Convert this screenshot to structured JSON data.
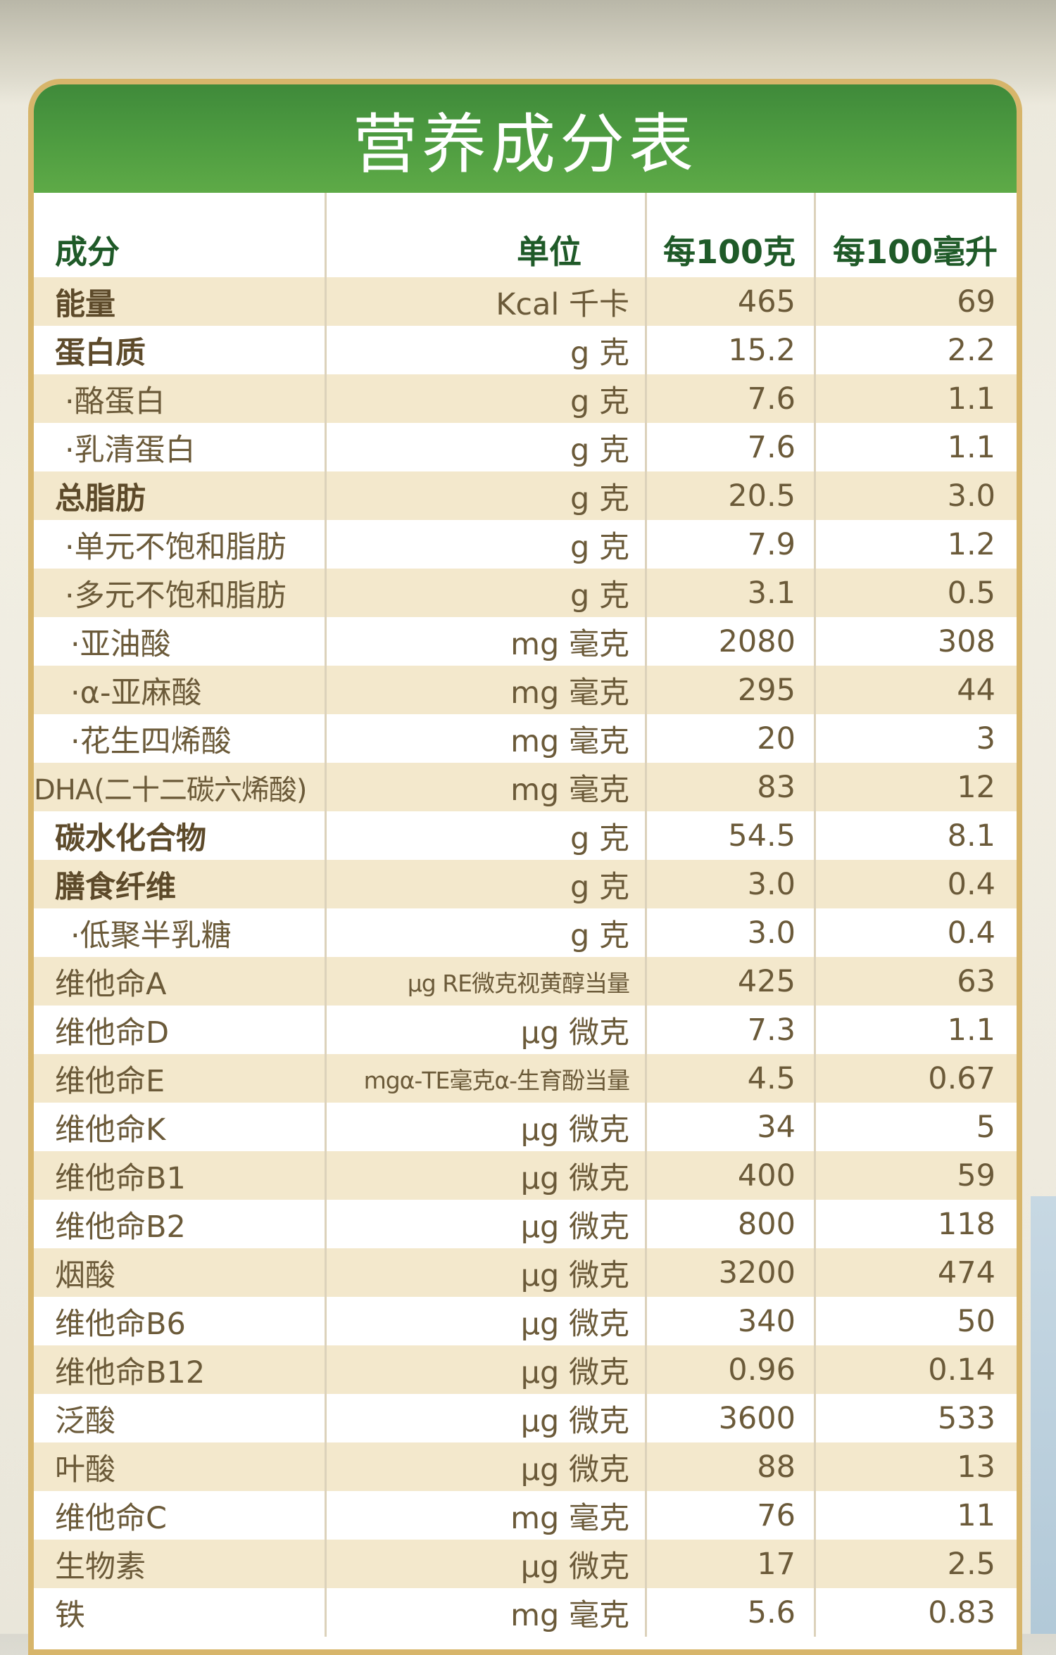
{
  "title": "营养成分表",
  "headers": [
    "成分",
    "单位",
    "每100克",
    "每100毫升"
  ],
  "rows": [
    {
      "name": "能量",
      "unit": "Kcal 千卡",
      "per100g": "465",
      "per100ml": "69"
    },
    {
      "name": "蛋白质",
      "unit": "g 克",
      "per100g": "15.2",
      "per100ml": "2.2"
    },
    {
      "name": "·酪蛋白",
      "unit": "g 克",
      "per100g": "7.6",
      "per100ml": "1.1"
    },
    {
      "name": "·乳清蛋白",
      "unit": "g 克",
      "per100g": "7.6",
      "per100ml": "1.1"
    },
    {
      "name": "总脂肪",
      "unit": "g 克",
      "per100g": "20.5",
      "per100ml": "3.0"
    },
    {
      "name": "·单元不饱和脂肪",
      "unit": "g 克",
      "per100g": "7.9",
      "per100ml": "1.2"
    },
    {
      "name": "·多元不饱和脂肪",
      "unit": "g 克",
      "per100g": "3.1",
      "per100ml": "0.5"
    },
    {
      "name": "·亚油酸",
      "unit": "mg 毫克",
      "per100g": "2080",
      "per100ml": "308"
    },
    {
      "name": "·α-亚麻酸",
      "unit": "mg 毫克",
      "per100g": "295",
      "per100ml": "44"
    },
    {
      "name": "·花生四烯酸",
      "unit": "mg 毫克",
      "per100g": "20",
      "per100ml": "3"
    },
    {
      "name": "DHA(二十二碳六烯酸)",
      "unit": "mg 毫克",
      "per100g": "83",
      "per100ml": "12"
    },
    {
      "name": "碳水化合物",
      "unit": "g 克",
      "per100g": "54.5",
      "per100ml": "8.1"
    },
    {
      "name": "膳食纤维",
      "unit": "g 克",
      "per100g": "3.0",
      "per100ml": "0.4"
    },
    {
      "name": "·低聚半乳糖",
      "unit": "g 克",
      "per100g": "3.0",
      "per100ml": "0.4"
    },
    {
      "name": "维他命A",
      "unit": "µg RE微克视黄醇当量",
      "per100g": "425",
      "per100ml": "63"
    },
    {
      "name": "维他命D",
      "unit": "µg 微克",
      "per100g": "7.3",
      "per100ml": "1.1"
    },
    {
      "name": "维他命E",
      "unit": "mgα-TE毫克α-生育酚当量",
      "per100g": "4.5",
      "per100ml": "0.67"
    },
    {
      "name": "维他命K",
      "unit": "µg 微克",
      "per100g": "34",
      "per100ml": "5"
    },
    {
      "name": "维他命B1",
      "unit": "µg 微克",
      "per100g": "400",
      "per100ml": "59"
    },
    {
      "name": "维他命B2",
      "unit": "µg 微克",
      "per100g": "800",
      "per100ml": "118"
    },
    {
      "name": "烟酸",
      "unit": "µg 微克",
      "per100g": "3200",
      "per100ml": "474"
    },
    {
      "name": "维他命B6",
      "unit": "µg 微克",
      "per100g": "340",
      "per100ml": "50"
    },
    {
      "name": "维他命B12",
      "unit": "µg 微克",
      "per100g": "0.96",
      "per100ml": "0.14"
    },
    {
      "name": "泛酸",
      "unit": "µg 微克",
      "per100g": "3600",
      "per100ml": "533"
    },
    {
      "name": "叶酸",
      "unit": "µg 微克",
      "per100g": "88",
      "per100ml": "13"
    },
    {
      "name": "维他命C",
      "unit": "mg 毫克",
      "per100g": "76",
      "per100ml": "11"
    },
    {
      "name": "生物素",
      "unit": "µg 微克",
      "per100g": "17",
      "per100ml": "2.5"
    },
    {
      "name": "铁",
      "unit": "mg 毫克",
      "per100g": "5.6",
      "per100ml": "0.83"
    }
  ],
  "colors": {
    "header_green": "#4f9d41",
    "border_gold": "#d7b56a",
    "row_shade": "#f3e8cc",
    "text_brown": "#6b5a39",
    "header_text_green": "#1f5a28"
  }
}
